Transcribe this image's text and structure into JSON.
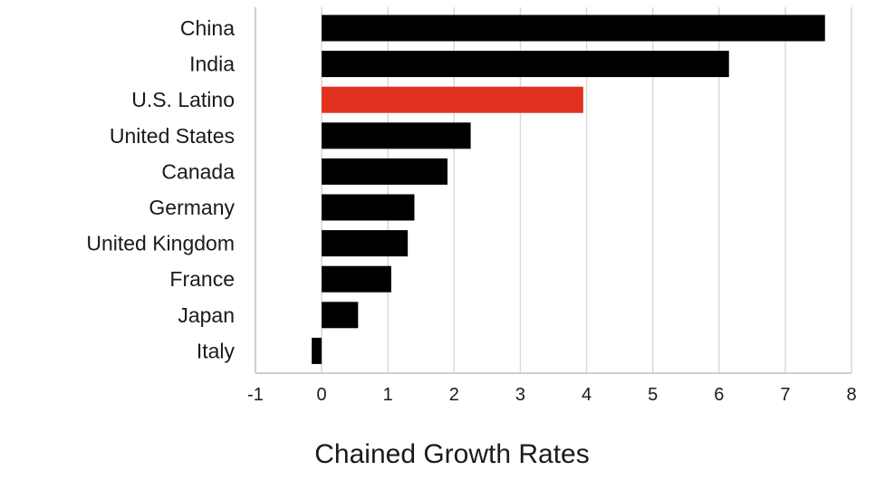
{
  "chart_data": {
    "type": "bar",
    "orientation": "horizontal",
    "title": "",
    "xlabel": "Chained Growth Rates",
    "ylabel": "",
    "categories": [
      "China",
      "India",
      "U.S. Latino",
      "United States",
      "Canada",
      "Germany",
      "United Kingdom",
      "France",
      "Japan",
      "Italy"
    ],
    "values": [
      7.6,
      6.15,
      3.95,
      2.25,
      1.9,
      1.4,
      1.3,
      1.05,
      0.55,
      -0.15
    ],
    "highlight_category": "U.S. Latino",
    "xlim": [
      -1,
      8
    ],
    "xticks": [
      -1,
      0,
      1,
      2,
      3,
      4,
      5,
      6,
      7,
      8
    ],
    "grid": true,
    "legend": "none",
    "colors": {
      "bar": "#000000",
      "highlight": "#e0321f",
      "grid": "#d9d9d9",
      "axis": "#bfbfbf",
      "text": "#1a1a1a"
    }
  }
}
